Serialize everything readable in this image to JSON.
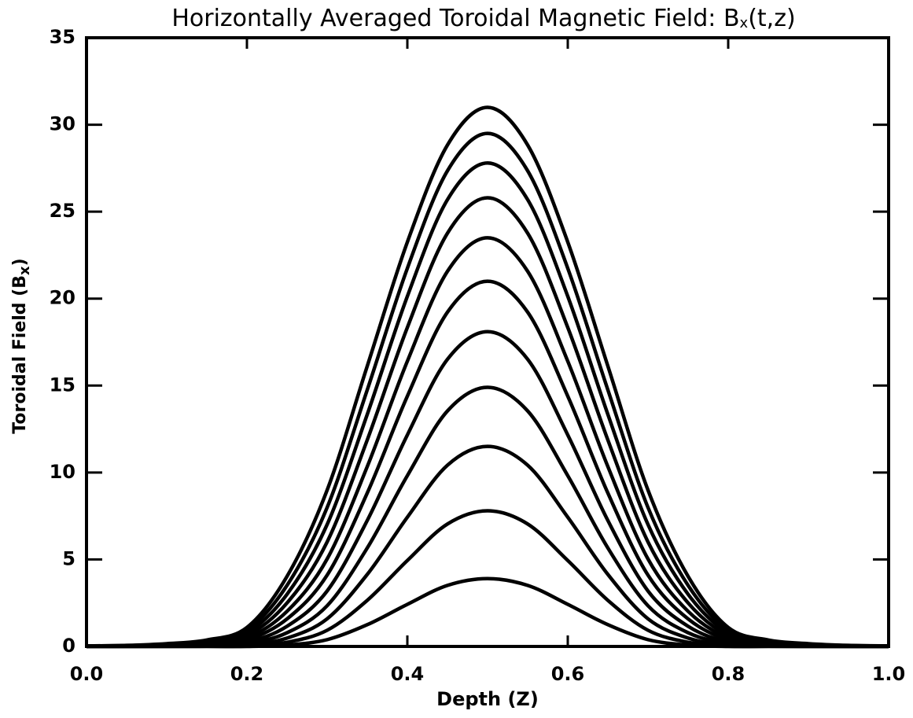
{
  "chart_data": {
    "type": "line",
    "title_parts": [
      "Horizontally Averaged Toroidal Magnetic Field: B",
      "x",
      "(t,z)"
    ],
    "xlabel": "Depth (Z)",
    "ylabel_parts": [
      "Toroidal Field (B",
      "x",
      ")"
    ],
    "x": [
      0,
      0.05,
      0.1,
      0.15,
      0.2,
      0.25,
      0.3,
      0.35,
      0.4,
      0.45,
      0.5,
      0.55,
      0.6,
      0.65,
      0.7,
      0.75,
      0.8,
      0.85,
      0.9,
      0.95,
      1
    ],
    "series": [
      {
        "color": "#000000",
        "values": [
          0,
          0,
          0,
          0,
          0,
          0.08,
          0.39,
          1.25,
          2.42,
          3.51,
          3.9,
          3.51,
          2.42,
          1.25,
          0.39,
          0.08,
          0,
          0,
          0,
          0,
          0
        ]
      },
      {
        "color": "#000000",
        "values": [
          0,
          0,
          0,
          0.01,
          0.03,
          0.24,
          0.93,
          2.65,
          4.94,
          7.04,
          7.8,
          7.04,
          4.94,
          2.65,
          0.93,
          0.24,
          0.03,
          0.01,
          0,
          0,
          0
        ]
      },
      {
        "color": "#000000",
        "values": [
          0,
          0,
          0.01,
          0.03,
          0.08,
          0.48,
          1.59,
          4.14,
          7.43,
          10.42,
          11.5,
          10.42,
          7.43,
          4.14,
          1.59,
          0.48,
          0.08,
          0.03,
          0.01,
          0,
          0
        ]
      },
      {
        "color": "#000000",
        "values": [
          0,
          0.01,
          0.02,
          0.05,
          0.16,
          0.79,
          2.34,
          5.66,
          9.82,
          13.54,
          14.9,
          13.54,
          9.82,
          5.66,
          2.34,
          0.79,
          0.16,
          0.05,
          0.02,
          0.01,
          0
        ]
      },
      {
        "color": "#000000",
        "values": [
          0.01,
          0.01,
          0.04,
          0.09,
          0.25,
          1.16,
          3.19,
          7.24,
          12.16,
          16.51,
          18.1,
          16.51,
          12.16,
          7.24,
          3.19,
          1.16,
          0.25,
          0.09,
          0.04,
          0.01,
          0.01
        ]
      },
      {
        "color": "#000000",
        "values": [
          0.01,
          0.02,
          0.05,
          0.13,
          0.37,
          1.58,
          4.1,
          8.82,
          14.39,
          19.22,
          21.0,
          19.22,
          14.39,
          8.82,
          4.1,
          1.58,
          0.37,
          0.13,
          0.05,
          0.02,
          0.01
        ]
      },
      {
        "color": "#000000",
        "values": [
          0.01,
          0.03,
          0.07,
          0.17,
          0.49,
          2.02,
          5.03,
          10.34,
          16.4,
          21.57,
          23.5,
          21.57,
          16.4,
          10.34,
          5.03,
          2.02,
          0.49,
          0.17,
          0.07,
          0.03,
          0.01
        ]
      },
      {
        "color": "#000000",
        "values": [
          0.02,
          0.04,
          0.09,
          0.22,
          0.63,
          2.5,
          6.01,
          11.87,
          18.34,
          23.76,
          25.8,
          23.76,
          18.34,
          11.87,
          6.01,
          2.5,
          0.63,
          0.22,
          0.09,
          0.04,
          0.02
        ]
      },
      {
        "color": "#000000",
        "values": [
          0.02,
          0.04,
          0.11,
          0.27,
          0.78,
          3.0,
          7.01,
          13.34,
          20.13,
          25.69,
          27.8,
          25.69,
          20.13,
          13.34,
          7.01,
          3.0,
          0.78,
          0.27,
          0.11,
          0.04,
          0.02
        ]
      },
      {
        "color": "#000000",
        "values": [
          0.03,
          0.05,
          0.13,
          0.32,
          0.93,
          3.51,
          7.99,
          14.75,
          21.74,
          27.35,
          29.5,
          27.35,
          21.74,
          14.75,
          7.99,
          3.51,
          0.93,
          0.32,
          0.13,
          0.05,
          0.03
        ]
      },
      {
        "color": "#000000",
        "values": [
          0.03,
          0.06,
          0.16,
          0.37,
          1.09,
          4.03,
          8.99,
          16.12,
          23.25,
          28.83,
          31.0,
          28.83,
          23.25,
          16.12,
          8.99,
          4.03,
          1.09,
          0.37,
          0.16,
          0.06,
          0.03
        ]
      }
    ],
    "xlim": [
      0,
      1
    ],
    "xticks": [
      {
        "value": 0,
        "label": "0.0"
      },
      0.2,
      0.4,
      0.6,
      0.8,
      {
        "value": 1,
        "label": "1.0"
      }
    ],
    "ylim": [
      0,
      35
    ],
    "yticks": [
      0,
      5,
      10,
      15,
      20,
      25,
      30,
      35
    ],
    "grid": false
  }
}
